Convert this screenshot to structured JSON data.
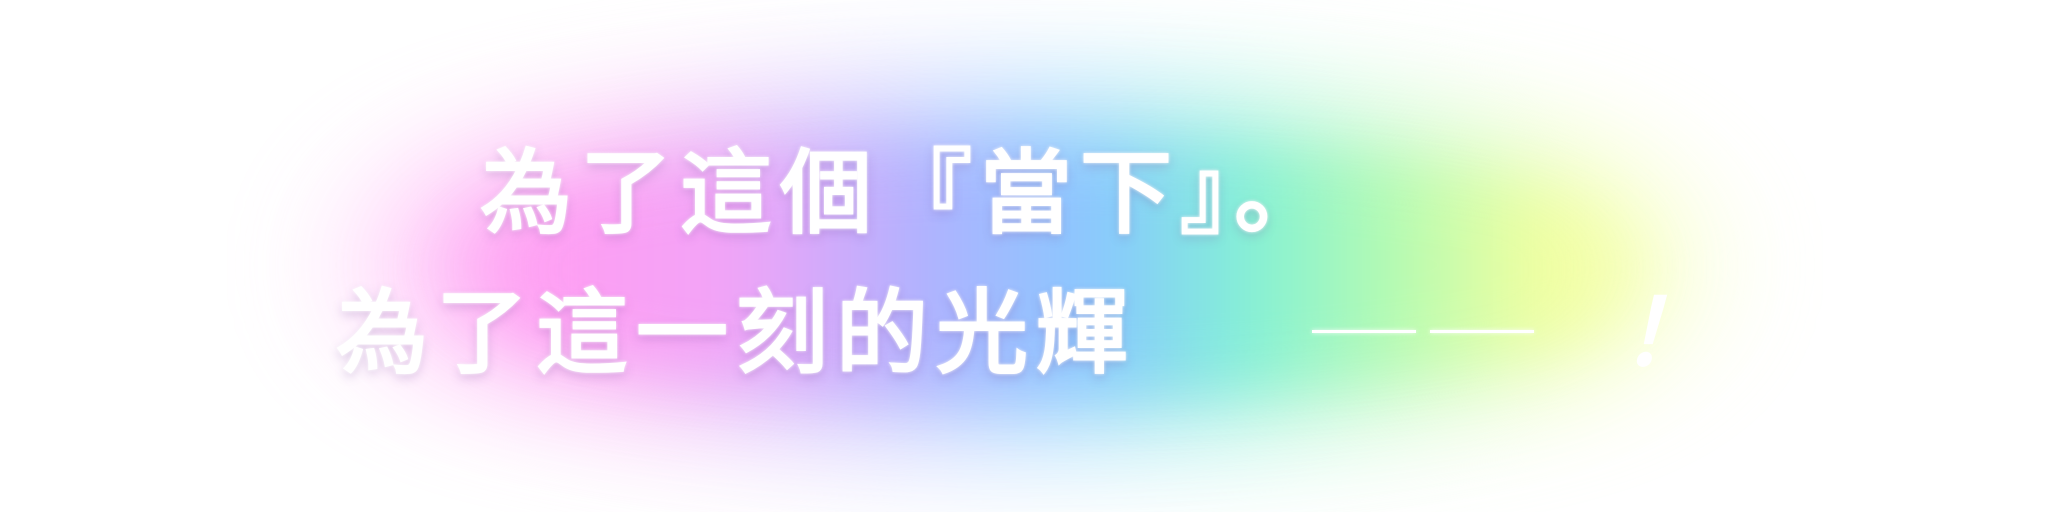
{
  "caption": {
    "line1": "為了這個『當下』。",
    "line2": "為了這一刻的光輝",
    "ending": "！"
  },
  "colors": {
    "text": "#ffffff",
    "glow_pink": "#ff9cf2",
    "glow_violet": "#a9b3ff",
    "glow_blue": "#86c8ff",
    "glow_teal": "#80f0d6",
    "glow_green": "#b4fbb0",
    "glow_yellow": "#f4ff9e"
  }
}
